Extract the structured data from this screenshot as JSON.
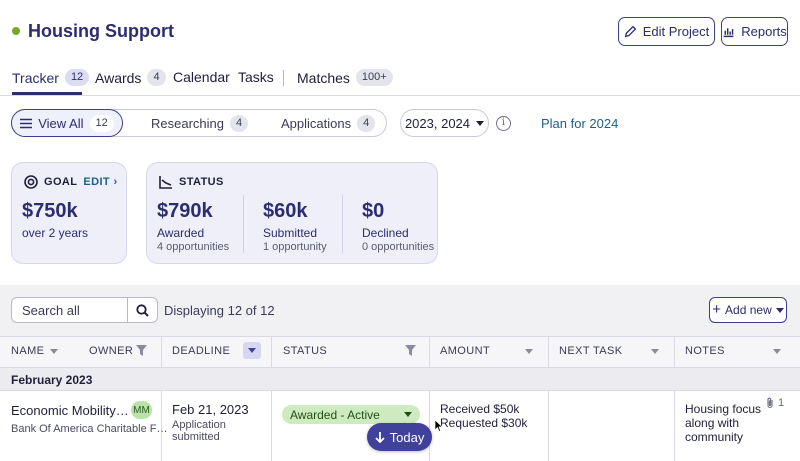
{
  "header": {
    "title": "Housing Support",
    "edit_project": "Edit Project",
    "reports": "Reports"
  },
  "tabs": [
    {
      "label": "Tracker",
      "count": "12"
    },
    {
      "label": "Awards",
      "count": "4"
    },
    {
      "label": "Calendar"
    },
    {
      "label": "Tasks"
    },
    {
      "label": "Matches",
      "count": "100+"
    }
  ],
  "filters": {
    "segments": [
      {
        "label": "View All",
        "count": "12"
      },
      {
        "label": "Researching",
        "count": "4"
      },
      {
        "label": "Applications",
        "count": "4"
      }
    ],
    "year": "2023, 2024",
    "plan_link": "Plan for 2024"
  },
  "goal_card": {
    "title": "GOAL",
    "edit": "EDIT",
    "amount": "$750k",
    "period": "over 2 years"
  },
  "status_card": {
    "title": "STATUS",
    "items": [
      {
        "amount": "$790k",
        "label": "Awarded",
        "sub": "4 opportunities"
      },
      {
        "amount": "$60k",
        "label": "Submitted",
        "sub": "1 opportunity"
      },
      {
        "amount": "$0",
        "label": "Declined",
        "sub": "0 opportunities"
      }
    ]
  },
  "table": {
    "search_placeholder": "Search all",
    "displaying": "Displaying 12 of 12",
    "add_new": "Add new",
    "columns": [
      "NAME",
      "OWNER",
      "DEADLINE",
      "STATUS",
      "AMOUNT",
      "NEXT TASK",
      "NOTES"
    ],
    "group": "February 2023",
    "rows": [
      {
        "name": "Economic Mobility…",
        "funder": "Bank Of America Charitable F…",
        "owner": "MM",
        "deadline": "Feb 21, 2023",
        "deadline_sub": "Application submitted",
        "status": "Awarded - Active",
        "amount_line1": "Received $50k",
        "amount_line2": "Requested $30k",
        "next_task": "",
        "notes": "Housing focus along with community",
        "attachments": "1"
      }
    ]
  },
  "today_button": "Today",
  "colors": {
    "primary": "#2b2d6e",
    "accent_button": "#3f419a",
    "status_awarded_bg": "#cdebbf",
    "status_dot": "#7aa52c",
    "link": "#1f5f88"
  }
}
